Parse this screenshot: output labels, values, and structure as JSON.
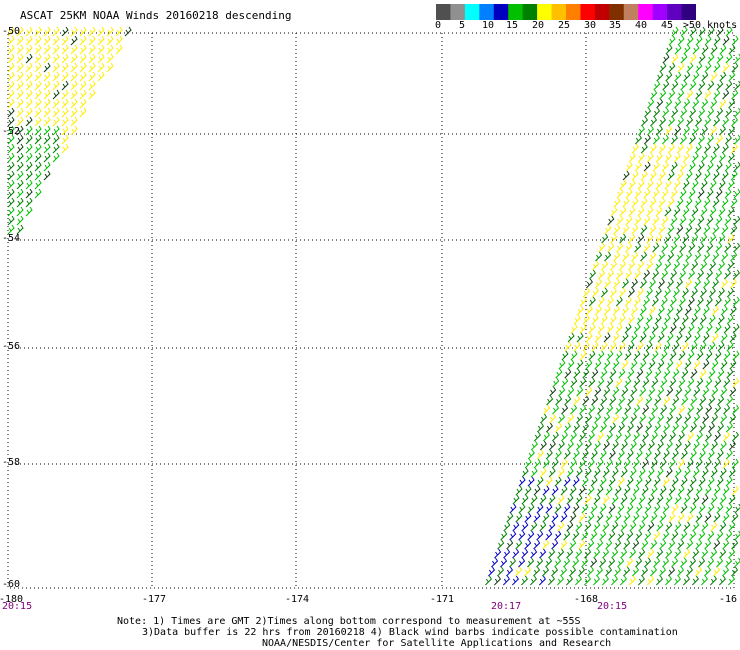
{
  "title": "ASCAT 25KM NOAA Winds 20160218 descending",
  "colors": {
    "background": "#ffffff",
    "grid": "#000000",
    "speed_bins": [
      "#505050",
      "#909090",
      "#00ffff",
      "#0080ff",
      "#0000c0",
      "#00c000",
      "#008000",
      "#ffff00",
      "#ffc000",
      "#ff8000",
      "#ff0000",
      "#c00000",
      "#803000",
      "#c08060",
      "#ff00ff",
      "#a000ff",
      "#6000c0",
      "#300080"
    ]
  },
  "scale": {
    "labels": [
      "0",
      "5",
      "10",
      "15",
      "20",
      "25",
      "30",
      "35",
      "40",
      "45",
      ">50 knots"
    ]
  },
  "lat_labels": [
    "-50",
    "-52",
    "-54",
    "-56",
    "-58",
    "-60"
  ],
  "lon_labels": [
    "-180",
    "-177",
    "-174",
    "-171",
    "-168",
    "-16"
  ],
  "time_labels": [
    "20:15",
    "20:17",
    "20:15"
  ],
  "notes": [
    "Note: 1) Times are GMT 2)Times along bottom correspond to measurement at ~55S",
    "3)Data buffer is 22 hrs from 20160218 4) Black wind barbs indicate possible contamination",
    "NOAA/NESDIS/Center for Satellite Applications and Research"
  ]
}
